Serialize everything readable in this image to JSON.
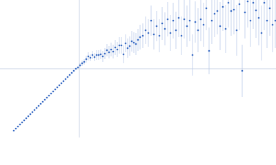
{
  "chart_data": {
    "type": "scatter",
    "x": [
      -95,
      -92,
      -89,
      -86,
      -83,
      -80,
      -77,
      -74,
      -71,
      -68,
      -65,
      -62,
      -59,
      -56,
      -53,
      -50,
      -47,
      -44,
      -41,
      -38,
      -35,
      -32,
      -29,
      -26,
      -23,
      -20,
      -17,
      -14,
      -11,
      -8,
      -5,
      -2,
      1,
      4,
      7,
      10,
      13,
      16,
      19,
      22,
      25,
      28,
      31,
      34,
      37,
      40,
      43,
      46,
      49,
      52,
      55,
      58,
      61,
      64,
      67,
      70,
      73,
      76,
      79,
      82,
      85,
      88,
      92,
      96,
      100,
      104,
      108,
      112,
      116,
      120,
      124,
      128,
      132,
      136,
      140,
      144,
      148,
      152,
      156,
      160,
      164,
      168,
      172,
      176,
      180,
      184,
      188,
      192,
      196,
      200,
      204,
      208,
      212,
      216,
      220,
      224,
      228,
      232,
      236,
      240,
      244,
      248,
      252,
      256,
      260,
      264,
      268,
      272,
      276,
      280,
      284
    ],
    "values": [
      -90,
      -87,
      -84,
      -81,
      -78,
      -75,
      -72,
      -69,
      -66,
      -63,
      -60,
      -57,
      -54,
      -51,
      -48,
      -45,
      -42,
      -39,
      -36,
      -33,
      -30,
      -27,
      -24,
      -21,
      -18,
      -15,
      -12,
      -9,
      -6,
      -3,
      0,
      2,
      5,
      8,
      10,
      14,
      18,
      16,
      20,
      17,
      20,
      20,
      21,
      18,
      22,
      27,
      24,
      28,
      25,
      31,
      28,
      34,
      34,
      21,
      37,
      30,
      33,
      40,
      38,
      36,
      42,
      46,
      48,
      56,
      52,
      70,
      50,
      62,
      48,
      66,
      58,
      72,
      52,
      70,
      56,
      74,
      48,
      72,
      62,
      70,
      20,
      68,
      56,
      72,
      64,
      88,
      26,
      70,
      80,
      84,
      62,
      90,
      58,
      96,
      84,
      86,
      56,
      94,
      -3,
      82,
      98,
      70,
      96,
      85,
      74,
      52,
      96,
      70,
      88,
      64,
      70
    ],
    "errors": [
      1,
      1,
      1,
      1,
      1,
      1,
      1,
      1,
      1,
      1,
      1,
      1,
      1,
      1,
      1,
      1,
      1,
      1,
      1,
      1,
      1,
      1,
      1,
      1,
      1,
      1,
      1,
      1,
      1,
      1,
      1,
      1,
      3,
      4,
      4,
      5,
      6,
      5,
      6,
      6,
      7,
      7,
      7,
      8,
      8,
      9,
      9,
      10,
      10,
      11,
      11,
      12,
      12,
      13,
      13,
      14,
      14,
      15,
      15,
      16,
      16,
      18,
      18,
      20,
      20,
      22,
      22,
      22,
      24,
      24,
      24,
      25,
      26,
      26,
      27,
      28,
      28,
      28,
      30,
      30,
      30,
      30,
      32,
      32,
      32,
      32,
      34,
      34,
      34,
      34,
      35,
      35,
      35,
      36,
      36,
      36,
      37,
      38,
      38,
      38,
      38,
      38,
      38,
      40,
      40,
      40,
      40,
      40,
      40,
      40,
      40
    ],
    "color": "#3a6cc4",
    "error_color": "#b9c9e8",
    "xlim": [
      -115,
      285
    ],
    "ylim": [
      -100,
      100
    ]
  }
}
